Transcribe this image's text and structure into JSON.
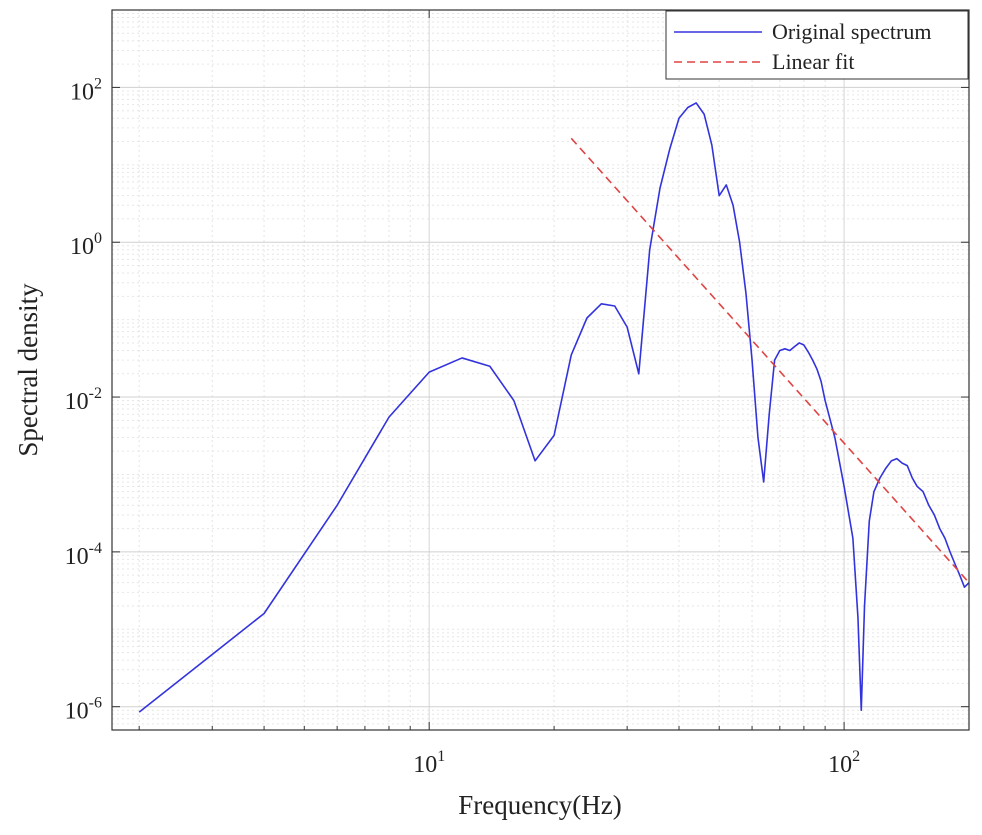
{
  "chart_data": {
    "type": "line",
    "title": "",
    "xlabel": "Frequency(Hz)",
    "ylabel": "Spectral density",
    "x_scale": "log",
    "y_scale": "log",
    "xlim": [
      1.72,
      200
    ],
    "ylim": [
      5e-07,
      1000
    ],
    "grid": true,
    "legend_position": "top-right",
    "x_ticks": [
      {
        "base": "10",
        "exp": "1",
        "value": 10
      },
      {
        "base": "10",
        "exp": "2",
        "value": 100
      }
    ],
    "y_ticks": [
      {
        "base": "10",
        "exp": "-6",
        "value": 1e-06
      },
      {
        "base": "10",
        "exp": "-4",
        "value": 0.0001
      },
      {
        "base": "10",
        "exp": "-2",
        "value": 0.01
      },
      {
        "base": "10",
        "exp": "0",
        "value": 1
      },
      {
        "base": "10",
        "exp": "2",
        "value": 100
      }
    ],
    "series": [
      {
        "name": "Original spectrum",
        "color": "#3333dd",
        "style": "solid",
        "x": [
          2,
          4,
          6,
          8,
          10,
          12,
          14,
          16,
          18,
          20,
          22,
          24,
          26,
          28,
          30,
          32,
          34,
          36,
          38,
          40,
          42,
          44,
          46,
          48,
          50,
          52,
          54,
          56,
          58,
          60,
          62,
          64,
          66,
          68,
          70,
          72,
          74,
          76,
          78,
          80,
          82,
          84,
          86,
          88,
          90,
          95,
          100,
          105,
          108,
          110,
          112,
          115,
          118,
          122,
          126,
          130,
          134,
          138,
          142,
          146,
          150,
          155,
          160,
          165,
          170,
          175,
          180,
          185,
          190,
          195,
          200
        ],
        "y": [
          8.5e-07,
          1.6e-05,
          0.0004,
          0.0055,
          0.021,
          0.032,
          0.025,
          0.009,
          0.0015,
          0.0032,
          0.035,
          0.105,
          0.16,
          0.15,
          0.08,
          0.02,
          0.8,
          5,
          16,
          40,
          55,
          63,
          45,
          18,
          4,
          5.5,
          3,
          1,
          0.22,
          0.03,
          0.003,
          0.0008,
          0.006,
          0.03,
          0.04,
          0.042,
          0.04,
          0.045,
          0.05,
          0.047,
          0.038,
          0.03,
          0.023,
          0.016,
          0.009,
          0.003,
          0.0007,
          0.00015,
          1.4e-05,
          9e-07,
          2e-05,
          0.00025,
          0.0006,
          0.0009,
          0.0012,
          0.0015,
          0.0016,
          0.0014,
          0.0013,
          0.0009,
          0.0007,
          0.0006,
          0.0004,
          0.0003,
          0.0002,
          0.00015,
          0.0001,
          7e-05,
          5e-05,
          3.5e-05,
          4e-05
        ]
      },
      {
        "name": "Linear fit",
        "color": "#e04444",
        "style": "dashed",
        "x": [
          22,
          200
        ],
        "y": [
          22,
          4e-05
        ]
      }
    ]
  }
}
